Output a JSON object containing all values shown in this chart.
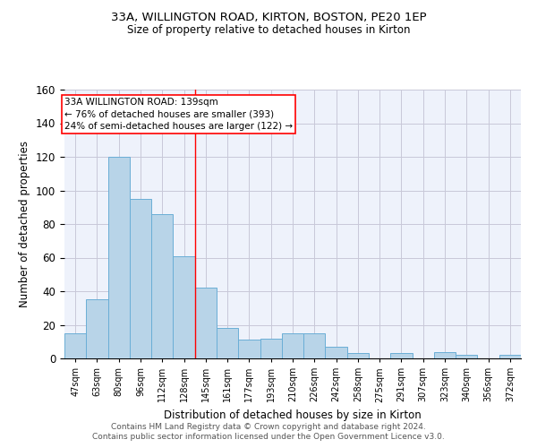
{
  "title1": "33A, WILLINGTON ROAD, KIRTON, BOSTON, PE20 1EP",
  "title2": "Size of property relative to detached houses in Kirton",
  "xlabel": "Distribution of detached houses by size in Kirton",
  "ylabel": "Number of detached properties",
  "bar_values": [
    15,
    35,
    120,
    95,
    86,
    61,
    42,
    18,
    11,
    12,
    15,
    15,
    7,
    3,
    0,
    3,
    0,
    4,
    2,
    0,
    2
  ],
  "bar_labels": [
    "47sqm",
    "63sqm",
    "80sqm",
    "96sqm",
    "112sqm",
    "128sqm",
    "145sqm",
    "161sqm",
    "177sqm",
    "193sqm",
    "210sqm",
    "226sqm",
    "242sqm",
    "258sqm",
    "275sqm",
    "291sqm",
    "307sqm",
    "323sqm",
    "340sqm",
    "356sqm",
    "372sqm"
  ],
  "bar_color": "#b8d4e8",
  "bar_edge_color": "#6aaed6",
  "vline_color": "red",
  "annotation_text": "33A WILLINGTON ROAD: 139sqm\n← 76% of detached houses are smaller (393)\n24% of semi-detached houses are larger (122) →",
  "ylim": [
    0,
    160
  ],
  "yticks": [
    0,
    20,
    40,
    60,
    80,
    100,
    120,
    140,
    160
  ],
  "footer1": "Contains HM Land Registry data © Crown copyright and database right 2024.",
  "footer2": "Contains public sector information licensed under the Open Government Licence v3.0.",
  "bg_color": "#eef2fb",
  "grid_color": "#c8c8d8"
}
